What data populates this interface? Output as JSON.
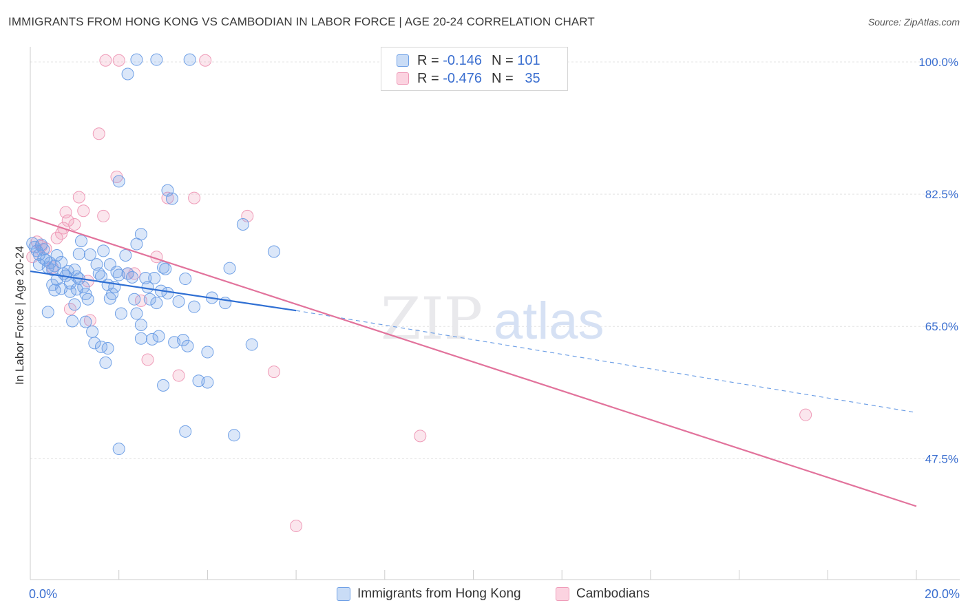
{
  "title": "IMMIGRANTS FROM HONG KONG VS CAMBODIAN IN LABOR FORCE | AGE 20-24 CORRELATION CHART",
  "source": "Source: ZipAtlas.com",
  "watermark": {
    "zip": "ZIP",
    "atlas": "atlas"
  },
  "legend": {
    "r_label": "R =",
    "n_label": "N =",
    "rows": [
      {
        "r": "-0.146",
        "n": "101",
        "color": "#6fa0e6"
      },
      {
        "r": "-0.476",
        "n": "35",
        "color": "#ef9bb8"
      }
    ]
  },
  "chart_data": {
    "type": "scatter",
    "xlabel": "",
    "ylabel": "In Labor Force | Age 20-24",
    "xlim": [
      0,
      20
    ],
    "ylim": [
      31.5,
      102
    ],
    "x_tick_labels": [
      "0.0%",
      "20.0%"
    ],
    "y_ticks": [
      47.5,
      65.0,
      82.5,
      100.0
    ],
    "y_tick_labels": [
      "47.5%",
      "65.0%",
      "82.5%",
      "100.0%"
    ],
    "grid": true,
    "legend_position": "top-center",
    "series": [
      {
        "name": "Immigrants from Hong Kong",
        "color": "#6fa0e6",
        "trend": {
          "x": [
            0,
            6
          ],
          "y": [
            72.3,
            67.1
          ],
          "dashed_to": [
            20,
            53.6
          ]
        },
        "points": [
          [
            0.05,
            76.0
          ],
          [
            0.1,
            75.5
          ],
          [
            0.15,
            75.0
          ],
          [
            0.2,
            74.5
          ],
          [
            0.25,
            75.8
          ],
          [
            0.3,
            74.0
          ],
          [
            0.2,
            73.2
          ],
          [
            0.35,
            73.8
          ],
          [
            0.4,
            72.8
          ],
          [
            0.45,
            73.4
          ],
          [
            0.5,
            72.5
          ],
          [
            0.55,
            73.0
          ],
          [
            0.6,
            71.2
          ],
          [
            0.7,
            73.5
          ],
          [
            0.75,
            72.0
          ],
          [
            0.8,
            71.7
          ],
          [
            0.9,
            70.7
          ],
          [
            0.5,
            70.5
          ],
          [
            0.55,
            69.8
          ],
          [
            0.7,
            70.0
          ],
          [
            0.9,
            69.6
          ],
          [
            1.0,
            72.5
          ],
          [
            1.05,
            71.6
          ],
          [
            1.1,
            71.3
          ],
          [
            1.2,
            70.2
          ],
          [
            1.25,
            69.3
          ],
          [
            1.3,
            68.6
          ],
          [
            1.0,
            67.9
          ],
          [
            0.4,
            66.9
          ],
          [
            0.95,
            65.7
          ],
          [
            1.25,
            65.6
          ],
          [
            1.4,
            64.3
          ],
          [
            1.45,
            62.8
          ],
          [
            1.6,
            62.3
          ],
          [
            1.75,
            62.1
          ],
          [
            1.7,
            60.2
          ],
          [
            1.15,
            76.3
          ],
          [
            1.1,
            74.6
          ],
          [
            1.35,
            74.5
          ],
          [
            1.65,
            75.0
          ],
          [
            1.5,
            73.2
          ],
          [
            1.55,
            72.0
          ],
          [
            1.6,
            71.6
          ],
          [
            1.75,
            70.5
          ],
          [
            1.8,
            68.7
          ],
          [
            1.85,
            69.3
          ],
          [
            1.9,
            70.2
          ],
          [
            1.8,
            73.2
          ],
          [
            2.0,
            71.8
          ],
          [
            2.05,
            66.7
          ],
          [
            2.15,
            74.4
          ],
          [
            2.2,
            72.0
          ],
          [
            2.3,
            71.5
          ],
          [
            2.35,
            68.6
          ],
          [
            2.4,
            66.7
          ],
          [
            2.5,
            65.2
          ],
          [
            2.5,
            63.4
          ],
          [
            2.6,
            71.4
          ],
          [
            2.65,
            70.2
          ],
          [
            2.7,
            68.6
          ],
          [
            2.75,
            63.3
          ],
          [
            2.8,
            71.4
          ],
          [
            2.5,
            77.2
          ],
          [
            2.4,
            75.9
          ],
          [
            2.85,
            68.1
          ],
          [
            2.9,
            63.7
          ],
          [
            2.95,
            69.7
          ],
          [
            3.0,
            72.8
          ],
          [
            3.05,
            72.6
          ],
          [
            3.1,
            69.4
          ],
          [
            3.25,
            62.9
          ],
          [
            3.35,
            68.3
          ],
          [
            3.5,
            71.3
          ],
          [
            3.45,
            63.2
          ],
          [
            3.55,
            62.4
          ],
          [
            3.0,
            57.2
          ],
          [
            3.5,
            51.1
          ],
          [
            3.8,
            57.8
          ],
          [
            4.0,
            57.6
          ],
          [
            4.0,
            61.6
          ],
          [
            4.1,
            68.8
          ],
          [
            4.4,
            68.1
          ],
          [
            4.5,
            72.7
          ],
          [
            4.6,
            50.6
          ],
          [
            4.8,
            78.5
          ],
          [
            5.0,
            62.6
          ],
          [
            5.5,
            74.9
          ],
          [
            3.1,
            83.0
          ],
          [
            3.2,
            81.9
          ],
          [
            2.0,
            84.2
          ],
          [
            2.2,
            98.4
          ],
          [
            2.4,
            100.3
          ],
          [
            2.85,
            100.3
          ],
          [
            3.6,
            100.3
          ],
          [
            2.0,
            48.8
          ],
          [
            3.7,
            67.6
          ],
          [
            0.3,
            75.2
          ],
          [
            0.6,
            74.4
          ],
          [
            0.85,
            72.3
          ],
          [
            1.05,
            69.9
          ],
          [
            1.95,
            72.2
          ]
        ]
      },
      {
        "name": "Cambodians",
        "color": "#ef9bb8",
        "trend": {
          "x": [
            0,
            20
          ],
          "y": [
            79.4,
            41.2
          ]
        },
        "points": [
          [
            0.05,
            74.2
          ],
          [
            0.15,
            76.2
          ],
          [
            0.25,
            75.6
          ],
          [
            0.35,
            75.3
          ],
          [
            0.5,
            72.8
          ],
          [
            0.6,
            76.7
          ],
          [
            0.7,
            77.3
          ],
          [
            0.75,
            78.0
          ],
          [
            0.8,
            80.1
          ],
          [
            0.85,
            79.0
          ],
          [
            0.9,
            67.3
          ],
          [
            1.0,
            78.5
          ],
          [
            1.1,
            82.1
          ],
          [
            1.2,
            80.3
          ],
          [
            1.3,
            71.0
          ],
          [
            1.35,
            65.8
          ],
          [
            1.55,
            90.5
          ],
          [
            1.65,
            79.6
          ],
          [
            1.7,
            100.2
          ],
          [
            1.95,
            84.8
          ],
          [
            2.0,
            100.2
          ],
          [
            2.2,
            72.0
          ],
          [
            2.35,
            72.0
          ],
          [
            2.5,
            68.4
          ],
          [
            2.65,
            60.6
          ],
          [
            2.85,
            74.2
          ],
          [
            3.1,
            82.0
          ],
          [
            3.35,
            58.5
          ],
          [
            3.7,
            82.0
          ],
          [
            3.95,
            100.2
          ],
          [
            4.9,
            79.6
          ],
          [
            5.5,
            59.0
          ],
          [
            6.0,
            38.6
          ],
          [
            8.8,
            50.5
          ],
          [
            17.5,
            53.3
          ]
        ]
      }
    ]
  },
  "bottom_legend": [
    {
      "label": "Immigrants from Hong Kong",
      "color": "#6fa0e6"
    },
    {
      "label": "Cambodians",
      "color": "#ef9bb8"
    }
  ]
}
